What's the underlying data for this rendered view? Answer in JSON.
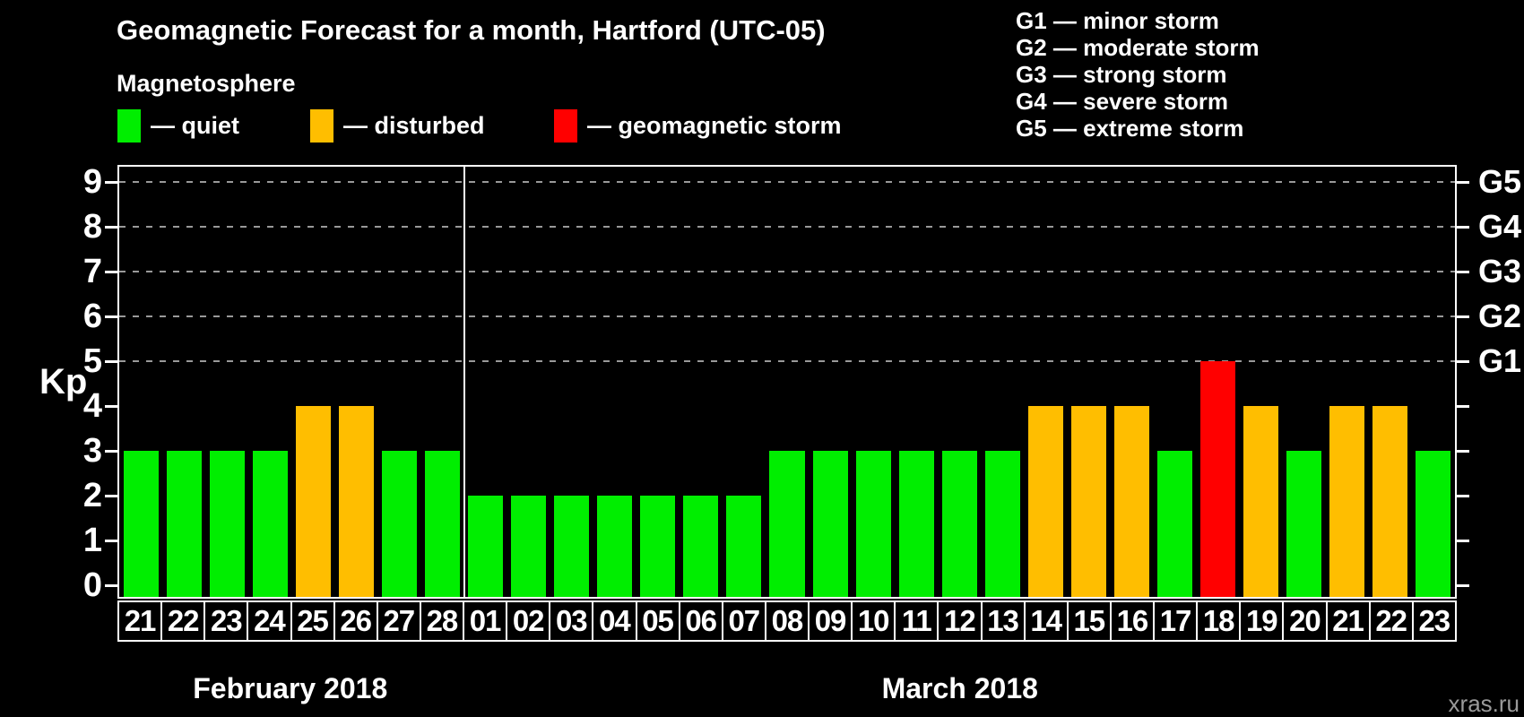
{
  "title": "Geomagnetic Forecast for a month, Hartford (UTC-05)",
  "magnetosphere_legend": {
    "heading": "Magnetosphere",
    "items": [
      {
        "key": "quiet",
        "label": "— quiet",
        "color": "#00ee00"
      },
      {
        "key": "disturbed",
        "label": "— disturbed",
        "color": "#ffbe00"
      },
      {
        "key": "storm",
        "label": "— geomagnetic storm",
        "color": "#ff0000"
      }
    ]
  },
  "storm_scale_legend": {
    "lines": [
      "G1 — minor storm",
      "G2 — moderate storm",
      "G3 — strong storm",
      "G4 — severe storm",
      "G5 — extreme storm"
    ]
  },
  "watermark": "xras.ru",
  "chart_data": {
    "type": "bar",
    "ylabel": "Kp",
    "ylim": [
      -0.26,
      9.34
    ],
    "yticks": [
      0,
      1,
      2,
      3,
      4,
      5,
      6,
      7,
      8,
      9
    ],
    "grid_levels": [
      5,
      6,
      7,
      8,
      9
    ],
    "grid_on": true,
    "legend_position": "top",
    "right_axis_labels": [
      {
        "kp": 5,
        "label": "G1"
      },
      {
        "kp": 6,
        "label": "G2"
      },
      {
        "kp": 7,
        "label": "G3"
      },
      {
        "kp": 8,
        "label": "G4"
      },
      {
        "kp": 9,
        "label": "G5"
      }
    ],
    "status_colors": {
      "quiet": "#00ee00",
      "disturbed": "#ffbe00",
      "storm": "#ff0000"
    },
    "months": [
      {
        "label": "February 2018",
        "days": [
          {
            "date": "21",
            "kp": 3,
            "status": "quiet"
          },
          {
            "date": "22",
            "kp": 3,
            "status": "quiet"
          },
          {
            "date": "23",
            "kp": 3,
            "status": "quiet"
          },
          {
            "date": "24",
            "kp": 3,
            "status": "quiet"
          },
          {
            "date": "25",
            "kp": 4,
            "status": "disturbed"
          },
          {
            "date": "26",
            "kp": 4,
            "status": "disturbed"
          },
          {
            "date": "27",
            "kp": 3,
            "status": "quiet"
          },
          {
            "date": "28",
            "kp": 3,
            "status": "quiet"
          }
        ]
      },
      {
        "label": "March 2018",
        "days": [
          {
            "date": "01",
            "kp": 2,
            "status": "quiet"
          },
          {
            "date": "02",
            "kp": 2,
            "status": "quiet"
          },
          {
            "date": "03",
            "kp": 2,
            "status": "quiet"
          },
          {
            "date": "04",
            "kp": 2,
            "status": "quiet"
          },
          {
            "date": "05",
            "kp": 2,
            "status": "quiet"
          },
          {
            "date": "06",
            "kp": 2,
            "status": "quiet"
          },
          {
            "date": "07",
            "kp": 2,
            "status": "quiet"
          },
          {
            "date": "08",
            "kp": 3,
            "status": "quiet"
          },
          {
            "date": "09",
            "kp": 3,
            "status": "quiet"
          },
          {
            "date": "10",
            "kp": 3,
            "status": "quiet"
          },
          {
            "date": "11",
            "kp": 3,
            "status": "quiet"
          },
          {
            "date": "12",
            "kp": 3,
            "status": "quiet"
          },
          {
            "date": "13",
            "kp": 3,
            "status": "quiet"
          },
          {
            "date": "14",
            "kp": 4,
            "status": "disturbed"
          },
          {
            "date": "15",
            "kp": 4,
            "status": "disturbed"
          },
          {
            "date": "16",
            "kp": 4,
            "status": "disturbed"
          },
          {
            "date": "17",
            "kp": 3,
            "status": "quiet"
          },
          {
            "date": "18",
            "kp": 5,
            "status": "storm"
          },
          {
            "date": "19",
            "kp": 4,
            "status": "disturbed"
          },
          {
            "date": "20",
            "kp": 3,
            "status": "quiet"
          },
          {
            "date": "21",
            "kp": 4,
            "status": "disturbed"
          },
          {
            "date": "22",
            "kp": 4,
            "status": "disturbed"
          },
          {
            "date": "23",
            "kp": 3,
            "status": "quiet"
          }
        ]
      }
    ]
  }
}
